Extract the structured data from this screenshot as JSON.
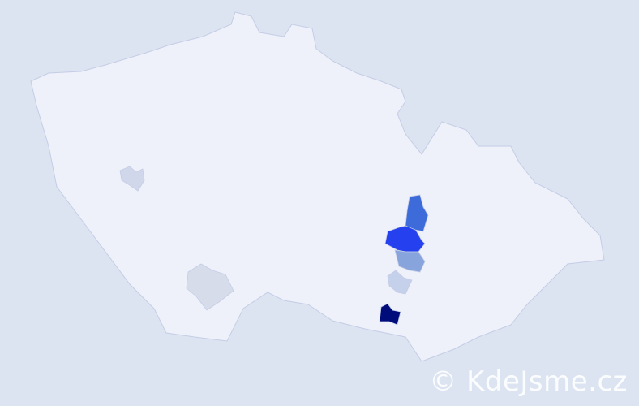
{
  "map": {
    "base_color": "#eef1fa",
    "border_color": "#c5cde6",
    "background": "#dce4f1",
    "highlighted_regions": [
      {
        "color": "#000c7a"
      },
      {
        "color": "#2540ee"
      },
      {
        "color": "#3d6bd9"
      },
      {
        "color": "#87a4dd"
      },
      {
        "color": "#c5d0ea"
      },
      {
        "color": "#d6dcea"
      },
      {
        "color": "#d0d7ea"
      }
    ]
  },
  "watermark": {
    "text": "© KdeJsme.cz"
  }
}
